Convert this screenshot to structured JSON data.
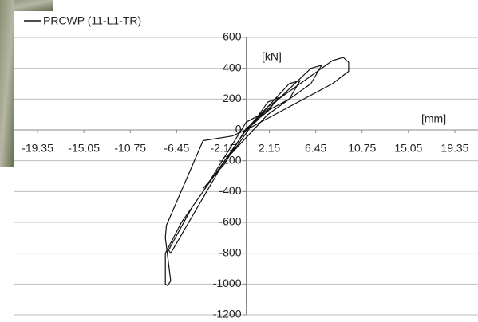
{
  "chart_data": {
    "type": "line",
    "y_label": "[kN]",
    "x_label": "[mm]",
    "xlim": [
      -21.5,
      21.5
    ],
    "xticks": [
      -19.35,
      -15.05,
      -10.75,
      -6.45,
      -2.15,
      2.15,
      6.45,
      10.75,
      15.05,
      19.35
    ],
    "ylim": [
      -1200,
      600
    ],
    "yticks": [
      600,
      400,
      200,
      0,
      -200,
      -400,
      -600,
      -800,
      -1000,
      -1200
    ],
    "grid": true,
    "series": [
      {
        "name": "PRCWP (11-L1-TR)",
        "color": "#111111",
        "x": [
          0,
          1,
          2,
          1,
          0,
          -1,
          -2,
          -1,
          0,
          2,
          3,
          2,
          0,
          -2,
          -4,
          -3,
          0,
          4,
          5,
          4,
          0,
          -4,
          -6,
          -5,
          -2,
          0,
          6,
          7,
          6,
          2,
          -2,
          -7,
          -7.2,
          -5,
          0,
          2,
          5,
          8,
          9,
          9.5,
          9.5,
          8,
          4,
          0,
          -3,
          -6,
          -7.5,
          -7.5,
          -7.3,
          -7,
          -7.5,
          -7.4,
          -4,
          -1.3,
          0
        ],
        "y": [
          0,
          80,
          150,
          60,
          0,
          -100,
          -200,
          -120,
          -20,
          180,
          210,
          120,
          10,
          -220,
          -380,
          -300,
          0,
          300,
          320,
          200,
          50,
          -400,
          -600,
          -500,
          -200,
          0,
          400,
          420,
          300,
          100,
          -200,
          -800,
          -780,
          -500,
          0,
          150,
          300,
          450,
          470,
          440,
          380,
          300,
          150,
          0,
          -300,
          -600,
          -800,
          -1000,
          -1010,
          -980,
          -700,
          -620,
          -70,
          -40,
          0
        ]
      }
    ]
  }
}
